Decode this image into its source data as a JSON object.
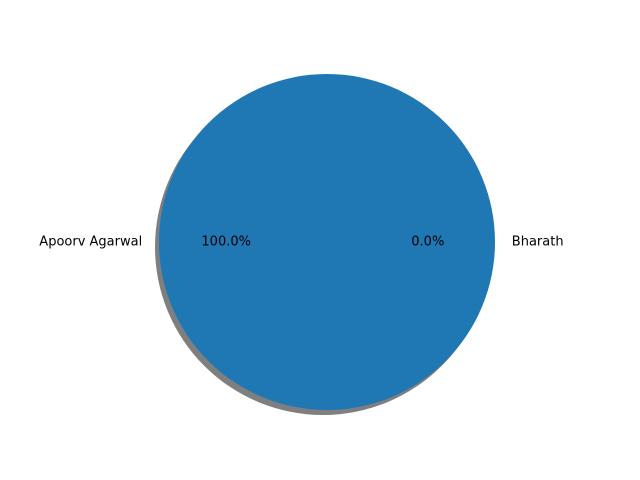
{
  "chart_data": {
    "type": "pie",
    "shadow": true,
    "slices": [
      {
        "label": "Bharath",
        "value": 0,
        "percent_label": "0.0%",
        "color": "#ff7f0e"
      },
      {
        "label": "Apoorv Agarwal",
        "value": 100,
        "percent_label": "100.0%",
        "color": "#1f77b4"
      }
    ],
    "title": "",
    "legend": "none"
  },
  "colors": {
    "shadow": "#7f7f7f",
    "background": "#ffffff"
  }
}
